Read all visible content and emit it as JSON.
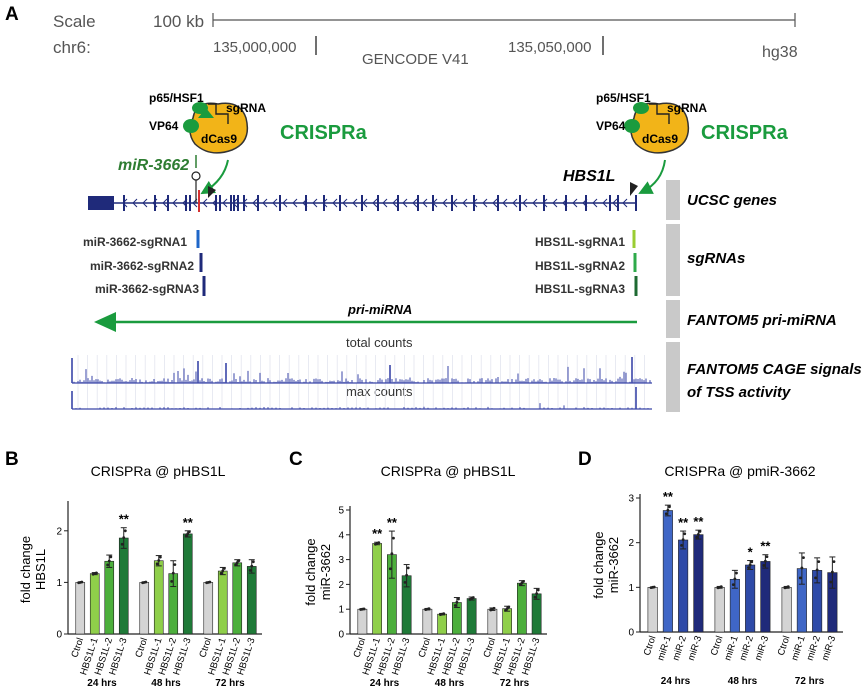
{
  "panelA": {
    "letter": "A",
    "scale_label": "Scale",
    "chrom_label": "chr6:",
    "scale_value": "100 kb",
    "assembly": "hg38",
    "coord1": "135,000,000",
    "coord2": "135,050,000",
    "gencode": "GENCODE V41",
    "crispra_left": {
      "p65": "p65/HSF1",
      "sgrna": "sgRNA",
      "vp64": "VP64",
      "dcas9": "dCas9",
      "label": "CRISPRa"
    },
    "crispra_right": {
      "p65": "p65/HSF1",
      "sgrna": "sgRNA",
      "vp64": "VP64",
      "dcas9": "dCas9",
      "label": "CRISPRa"
    },
    "mir_label": "miR-3662",
    "hbs_label": "HBS1L",
    "sgrnas_left": [
      "miR-3662-sgRNA1",
      "miR-3662-sgRNA2",
      "miR-3662-sgRNA3"
    ],
    "sgrnas_right": [
      "HBS1L-sgRNA1",
      "HBS1L-sgRNA2",
      "HBS1L-sgRNA3"
    ],
    "pri_mirna": "pri-miRNA",
    "total_counts": "total counts",
    "max_counts": "max counts",
    "tracks": [
      "UCSC genes",
      "sgRNAs",
      "FANTOM5 pri-miRNA",
      "FANTOM5 CAGE signals",
      "of TSS activity"
    ]
  },
  "colors": {
    "green": "#1a9b3e",
    "darkgreen": "#2e7d32",
    "navy": "#2a2f7a",
    "cas": "#f2b418",
    "grey": "#c9c9c9"
  },
  "chart_data": [
    {
      "panel": "B",
      "type": "bar",
      "title": "CRISPRa @ pHBS1L",
      "ylabel": "fold change HBS1L",
      "ylim": [
        0,
        2.5
      ],
      "yticks": [
        "0",
        "1",
        "2"
      ],
      "categories": [
        "Ctrol",
        "HBS1L-1",
        "HBS1L-2",
        "HBS1L-3",
        "Ctrol",
        "HBS1L-1",
        "HBS1L-2",
        "HBS1L-3",
        "Ctrol",
        "HBS1L-1",
        "HBS1L-2",
        "HBS1L-3"
      ],
      "values": [
        1.0,
        1.17,
        1.41,
        1.86,
        1.0,
        1.42,
        1.17,
        1.94,
        1.0,
        1.22,
        1.38,
        1.31
      ],
      "errors": [
        0.01,
        0.02,
        0.12,
        0.2,
        0.01,
        0.1,
        0.25,
        0.06,
        0.01,
        0.07,
        0.06,
        0.13
      ],
      "significance": [
        "",
        "",
        "",
        "**",
        "",
        "",
        "",
        "**",
        "",
        "",
        "",
        ""
      ],
      "groups": [
        "24 hrs",
        "48 hrs",
        "72 hrs"
      ]
    },
    {
      "panel": "C",
      "type": "bar",
      "title": "CRISPRa @ pHBS1L",
      "ylabel": "fold change miR-3662",
      "ylim": [
        0,
        5
      ],
      "yticks": [
        "0",
        "1",
        "2",
        "3",
        "4",
        "5"
      ],
      "categories": [
        "Ctrol",
        "HBS1L-1",
        "HBS1L-2",
        "HBS1L-3",
        "Ctrol",
        "HBS1L-1",
        "HBS1L-2",
        "HBS1L-3",
        "Ctrol",
        "HBS1L-1",
        "HBS1L-2",
        "HBS1L-3"
      ],
      "values": [
        1.0,
        3.65,
        3.2,
        2.35,
        1.0,
        0.8,
        1.27,
        1.43,
        1.0,
        1.02,
        2.05,
        1.62
      ],
      "errors": [
        0.02,
        0.05,
        0.95,
        0.45,
        0.03,
        0.03,
        0.2,
        0.06,
        0.05,
        0.1,
        0.1,
        0.22
      ],
      "significance": [
        "",
        "**",
        "**",
        "",
        "",
        "",
        "",
        "",
        "",
        "",
        "",
        ""
      ],
      "groups": [
        "24 hrs",
        "48 hrs",
        "72 hrs"
      ]
    },
    {
      "panel": "D",
      "type": "bar",
      "title": "CRISPRa @ pmiR-3662",
      "ylabel": "fold change miR-3662",
      "ylim": [
        0,
        3
      ],
      "yticks": [
        "0",
        "1",
        "2",
        "3"
      ],
      "categories": [
        "Ctrol",
        "miR-1",
        "miR-2",
        "miR-3",
        "Ctrol",
        "miR-1",
        "miR-2",
        "miR-3",
        "Ctrol",
        "miR-1",
        "miR-2",
        "miR-3"
      ],
      "values": [
        1.0,
        2.72,
        2.06,
        2.18,
        1.0,
        1.18,
        1.5,
        1.58,
        1.0,
        1.42,
        1.38,
        1.33
      ],
      "errors": [
        0.01,
        0.12,
        0.2,
        0.1,
        0.02,
        0.2,
        0.1,
        0.15,
        0.02,
        0.35,
        0.28,
        0.35
      ],
      "significance": [
        "",
        "**",
        "**",
        "**",
        "",
        "",
        "*",
        "**",
        "",
        "",
        "",
        ""
      ],
      "groups": [
        "24 hrs",
        "48 hrs",
        "72 hrs"
      ]
    }
  ]
}
